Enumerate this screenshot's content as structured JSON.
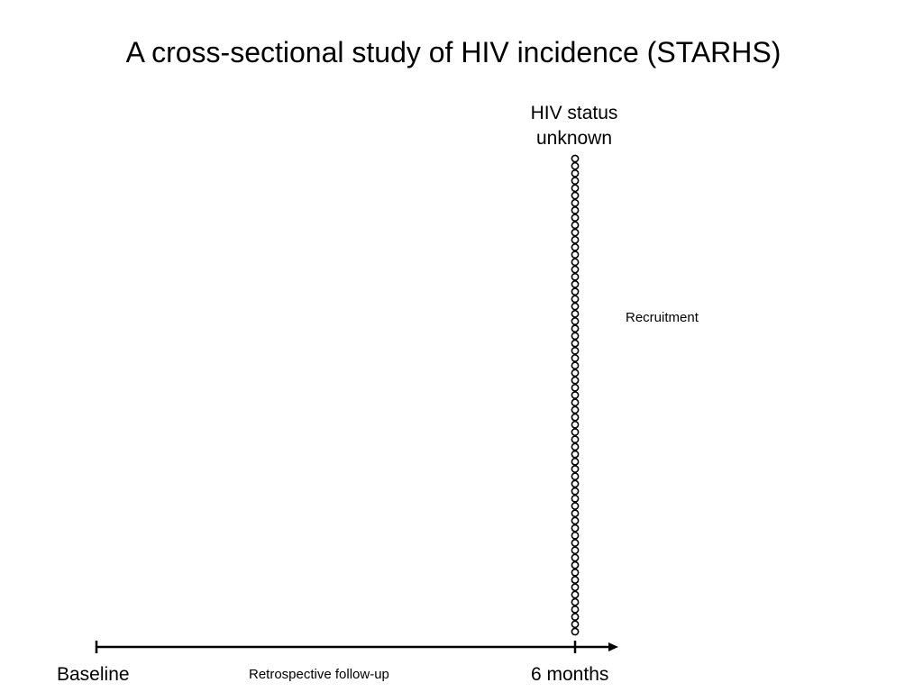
{
  "title": "A cross-sectional study of HIV incidence (STARHS)",
  "status_label_line1": "HIV status",
  "status_label_line2": "unknown",
  "recruitment_label": "Recruitment",
  "timeline": {
    "start_label": "Baseline",
    "middle_label": "Retrospective follow-up",
    "end_label": "6 months"
  },
  "participants": {
    "count": 65
  }
}
